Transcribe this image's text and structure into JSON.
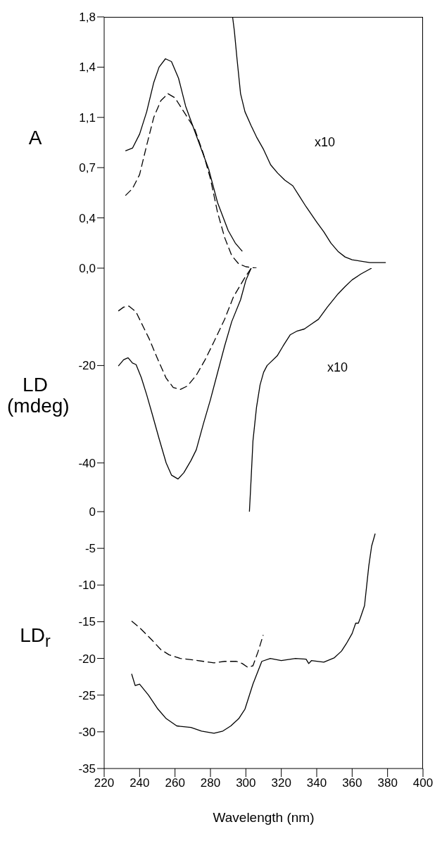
{
  "chart_data": [
    {
      "type": "line",
      "ylabel": "A",
      "xlim": [
        220,
        400
      ],
      "ylim": [
        0,
        1.8
      ],
      "yticks": [
        {
          "value": 0,
          "label": "0,0"
        },
        {
          "value": 0.36,
          "label": "0,4"
        },
        {
          "value": 0.72,
          "label": "0,7"
        },
        {
          "value": 1.08,
          "label": "1,1"
        },
        {
          "value": 1.44,
          "label": "1,4"
        },
        {
          "value": 1.8,
          "label": "1,8"
        }
      ],
      "tick_labels": "y",
      "annotations": [
        "x10"
      ],
      "series": [
        {
          "color": "#000000",
          "line_style": "solid",
          "x": [
            232,
            236,
            240,
            244,
            248,
            251,
            254.6,
            258,
            262,
            266,
            272,
            279,
            284,
            290,
            294,
            298
          ],
          "values": [
            0.84,
            0.86,
            0.96,
            1.12,
            1.33,
            1.44,
            1.5,
            1.48,
            1.36,
            1.16,
            0.95,
            0.71,
            0.47,
            0.27,
            0.18,
            0.12
          ]
        },
        {
          "color": "#000000",
          "line_style": "dashed",
          "x": [
            232,
            236,
            240,
            244,
            248,
            252,
            256,
            260,
            265,
            271,
            276,
            280,
            284,
            288,
            292,
            296,
            300,
            306
          ],
          "values": [
            0.52,
            0.57,
            0.67,
            0.88,
            1.08,
            1.2,
            1.25,
            1.22,
            1.12,
            1.0,
            0.82,
            0.64,
            0.4,
            0.22,
            0.09,
            0.03,
            0.01,
            0
          ]
        },
        {
          "color": "#000000",
          "line_style": "solid",
          "x": [
            292.5,
            293.5,
            295,
            297,
            299.5,
            303,
            306,
            310,
            314,
            318,
            322,
            326.5,
            330,
            334,
            340,
            344,
            348,
            352,
            356,
            360,
            370,
            379
          ],
          "values": [
            1.8,
            1.7,
            1.5,
            1.25,
            1.12,
            1.02,
            0.94,
            0.85,
            0.74,
            0.68,
            0.63,
            0.59,
            0.52,
            0.44,
            0.33,
            0.26,
            0.18,
            0.12,
            0.08,
            0.06,
            0.04,
            0.04
          ]
        }
      ]
    },
    {
      "type": "line",
      "ylabel": "LD (mdeg)",
      "xlim": [
        220,
        400
      ],
      "ylim": [
        -50,
        0
      ],
      "yticks": [
        -40,
        -20
      ],
      "tick_labels": "y",
      "annotations": [
        "x10"
      ],
      "series": [
        {
          "color": "#000000",
          "line_style": "solid",
          "x": [
            228,
            231,
            233.5,
            236,
            238,
            241,
            244,
            247,
            251,
            255,
            258,
            261.7,
            265,
            269,
            272,
            276,
            280,
            284,
            288,
            292,
            297,
            300,
            303
          ],
          "values": [
            -20.1,
            -18.8,
            -18.4,
            -19.5,
            -19.8,
            -22.5,
            -26,
            -29.8,
            -35,
            -40,
            -42.5,
            -43.3,
            -42,
            -39.5,
            -37.3,
            -32,
            -27,
            -21.5,
            -16,
            -11,
            -6.5,
            -2.5,
            0
          ]
        },
        {
          "color": "#000000",
          "line_style": "dashed",
          "x": [
            228,
            231,
            234,
            238,
            242,
            245.4,
            250,
            255,
            259,
            263,
            267,
            272,
            277,
            282,
            288,
            293,
            299.5,
            303
          ],
          "values": [
            -8.8,
            -8,
            -7.8,
            -9,
            -12,
            -14.5,
            -18.5,
            -22.6,
            -24.5,
            -24.9,
            -24.2,
            -22,
            -18.8,
            -15.1,
            -10.5,
            -5.9,
            -1.9,
            0
          ]
        },
        {
          "color": "#000000",
          "line_style": "solid",
          "x": [
            302,
            303,
            304,
            306,
            308,
            310,
            312,
            317.7,
            321,
            325,
            329,
            333,
            337,
            341,
            346,
            352,
            356,
            360,
            365,
            371
          ],
          "values": [
            -50,
            -43,
            -35.5,
            -28.6,
            -24,
            -21.4,
            -20,
            -18,
            -16,
            -13.7,
            -12.9,
            -12.5,
            -11.5,
            -10.5,
            -8,
            -5.3,
            -3.8,
            -2.4,
            -1.2,
            0
          ]
        }
      ]
    },
    {
      "type": "line",
      "ylabel": "LD$_{r}$",
      "xlabel": "Wavelength (nm)",
      "xlim": [
        220,
        400
      ],
      "xticks": [
        220,
        240,
        260,
        280,
        300,
        320,
        340,
        360,
        380,
        400
      ],
      "ylim": [
        -35,
        0
      ],
      "yticks": [
        -35,
        -30,
        -25,
        -20,
        -15,
        -10,
        -5,
        0
      ],
      "series": [
        {
          "color": "#000000",
          "line_style": "dashed",
          "x": [
            235.5,
            240,
            247,
            252,
            256.6,
            263,
            270,
            276,
            282,
            288,
            294.7,
            298,
            301,
            304,
            307,
            309.8
          ],
          "values": [
            -14.9,
            -15.8,
            -17.5,
            -18.8,
            -19.5,
            -20,
            -20.2,
            -20.4,
            -20.6,
            -20.4,
            -20.4,
            -20.7,
            -21.2,
            -21,
            -19,
            -16.8
          ]
        },
        {
          "color": "#000000",
          "line_style": "solid",
          "x": [
            235.5,
            237.5,
            240,
            245,
            250,
            255,
            261,
            269,
            275,
            282,
            287,
            291.5,
            296,
            299.5,
            304,
            309,
            313.8,
            320,
            328,
            334,
            335.5,
            337,
            344,
            350,
            354,
            356.7,
            360,
            362,
            363.5,
            364.6,
            367,
            369.4,
            371,
            373
          ],
          "values": [
            -22.1,
            -23.7,
            -23.5,
            -25,
            -26.8,
            -28.2,
            -29.2,
            -29.4,
            -29.9,
            -30.2,
            -29.9,
            -29.2,
            -28.2,
            -26.9,
            -23.5,
            -20.4,
            -20,
            -20.3,
            -20,
            -20.1,
            -20.7,
            -20.3,
            -20.5,
            -19.9,
            -19,
            -18,
            -16.6,
            -15.2,
            -15.2,
            -14.5,
            -12.8,
            -7.4,
            -4.7,
            -3
          ]
        }
      ]
    }
  ]
}
